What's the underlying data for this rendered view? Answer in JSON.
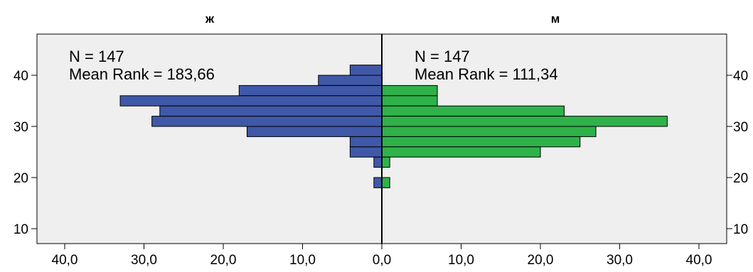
{
  "chart_data": {
    "type": "bar",
    "subtype": "population-pyramid",
    "orientation": "horizontal",
    "background": "#efefef",
    "left_panel": {
      "title": "ж",
      "n_label": "N = 147",
      "mean_rank_label": "Mean Rank = 183,66",
      "color": "#3f58a8",
      "bins": [
        {
          "y": 41,
          "count": 4
        },
        {
          "y": 39,
          "count": 8
        },
        {
          "y": 37,
          "count": 18
        },
        {
          "y": 35,
          "count": 33
        },
        {
          "y": 33,
          "count": 28
        },
        {
          "y": 31,
          "count": 29
        },
        {
          "y": 29,
          "count": 17
        },
        {
          "y": 27,
          "count": 4
        },
        {
          "y": 25,
          "count": 4
        },
        {
          "y": 23,
          "count": 1
        },
        {
          "y": 19,
          "count": 1
        }
      ]
    },
    "right_panel": {
      "title": "м",
      "n_label": "N = 147",
      "mean_rank_label": "Mean Rank = 111,34",
      "color": "#2fb24a",
      "bins": [
        {
          "y": 37,
          "count": 7
        },
        {
          "y": 35,
          "count": 7
        },
        {
          "y": 33,
          "count": 23
        },
        {
          "y": 31,
          "count": 36
        },
        {
          "y": 29,
          "count": 27
        },
        {
          "y": 27,
          "count": 25
        },
        {
          "y": 25,
          "count": 20
        },
        {
          "y": 23,
          "count": 1
        },
        {
          "y": 19,
          "count": 1
        }
      ]
    },
    "bin_width": 2,
    "y_ticks": [
      10,
      20,
      30,
      40
    ],
    "x_ticks_left": [
      "40,0",
      "30,0",
      "20,0",
      "10,0",
      "0,0"
    ],
    "x_ticks_right": [
      "10,0",
      "20,0",
      "30,0",
      "40,0"
    ],
    "x_range": [
      0,
      40
    ],
    "y_range": [
      7,
      48
    ]
  }
}
